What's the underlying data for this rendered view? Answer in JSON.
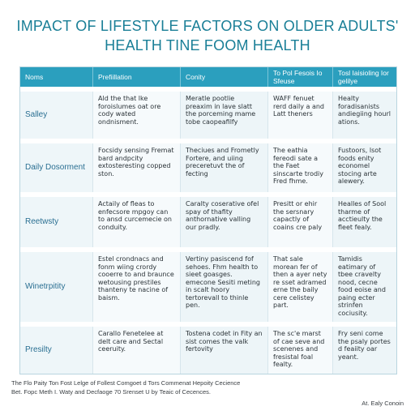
{
  "title": {
    "line1": "IMPACT OF LIFESTYLE FACTORS ON OLDER ADULTS'",
    "line2": "HEALTH TINE FOOM HEALTH"
  },
  "table": {
    "headers": [
      "Noms",
      "Prefiillation",
      "Conity",
      "To Pol Fesois Io Sfeuse",
      "Tosl Iaisioling Ior gelilye"
    ],
    "rows": [
      {
        "name": "Salley",
        "cells": [
          "Ald the that lke foroislumes oat ore cody wated ondnisment.",
          "Meratle pootlie preaxim in lave slatt the porceming mame tobe caopeafilfy",
          "WAFF fenuet rerd daily a and Latt theners",
          "Healty foradisanists andiegiing hourl ations."
        ]
      },
      {
        "name": "Daily Dosorment",
        "cells": [
          "Focsidy sensing Fremat bard andpcity extosteresting copped ston.",
          "Theciues and Frometly Fortere, and uiing preceretuvt the of fecting",
          "The eathia fereodi sate a the Faet sinscarte trodiy Fred fhme.",
          "Fustoors, lsot foods enity economel stocing arte alewery."
        ]
      },
      {
        "name": "Reetwsty",
        "cells": [
          "Actaily of fleas to enfecsore mpgoy can to ansd curcemecie on conduity.",
          "Caralty coserative ofel spay of thafity anthornative valling our pradly.",
          "Presitt or ehir the sersnary capactly of coains cre paly",
          "Healles of Sool tharme of acctieulty the fleet fealy."
        ]
      },
      {
        "name": "Winetrpitity",
        "cells": [
          "Estel crondnacs and fonm wiing crordy cooerre to and braunce wetousing prestiles thanteny te nacine of baism.",
          "Vertiny pasiscend fof sehoes. Fhm health to sieet goasges. emecone Sesiti meting in scalt hoory tertorevall to thinle pen.",
          "That sale morean fer of then a ayer nety re sset adramed erne the baily cere celistey part.",
          "Tamidis eatimary of tbee cravelty nood, cecne food eoise and paing ecter strinfen cociusity."
        ]
      },
      {
        "name": "Presilty",
        "cells": [
          "Carallo Fenetelee at delt care and Sectal ceeruity.",
          "Tostena codet in Fity an sist comes the valk fertovity",
          "The sc'e marst of cae seve and scenenes and fresistal foal fealty.",
          "Fry seni come the psaly portes d feaiity oar yeant."
        ]
      }
    ]
  },
  "footnote": {
    "line1": "The Flo Paity Ton Fost Lelge of Follest Comgoet d Tors Commenat Hepoity Cecience",
    "line2": "Bet. Fopc Meth I. Waty and Decfaoge 70 Srenset U by Teaic of Cecences."
  },
  "credit": "At. Ealy Conoin"
}
